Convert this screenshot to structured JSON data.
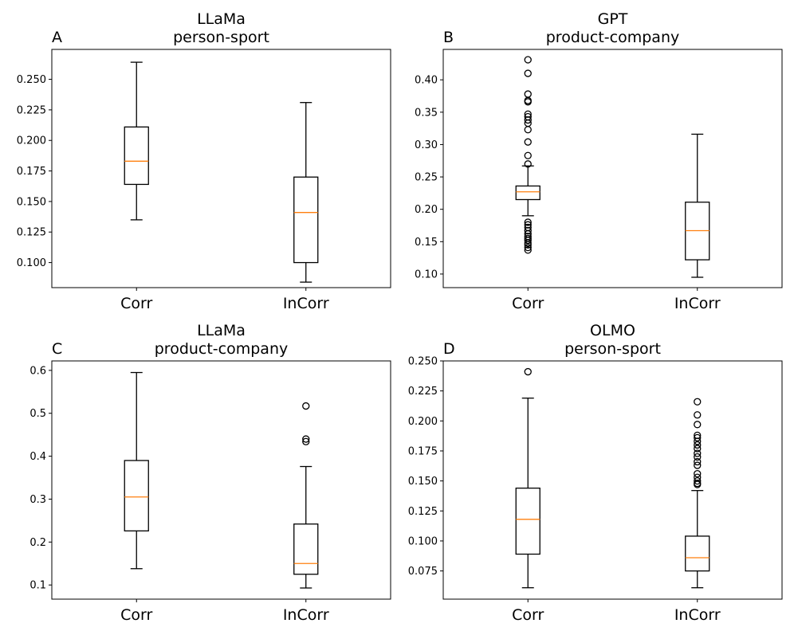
{
  "chart_data": [
    {
      "type": "box",
      "panel_label": "A",
      "title_line1": "LLaMa",
      "title_line2": "person-sport",
      "categories": [
        "Corr",
        "InCorr"
      ],
      "ylim": [
        0.0795,
        0.2745
      ],
      "yticks": [
        0.1,
        0.125,
        0.15,
        0.175,
        0.2,
        0.225,
        0.25
      ],
      "ytick_labels": [
        "0.100",
        "0.125",
        "0.150",
        "0.175",
        "0.200",
        "0.225",
        "0.250"
      ],
      "boxes": [
        {
          "whislo": 0.135,
          "q1": 0.164,
          "med": 0.183,
          "q3": 0.211,
          "whishi": 0.264,
          "fliers": []
        },
        {
          "whislo": 0.084,
          "q1": 0.1,
          "med": 0.141,
          "q3": 0.17,
          "whishi": 0.231,
          "fliers": []
        }
      ]
    },
    {
      "type": "box",
      "panel_label": "B",
      "title_line1": "GPT",
      "title_line2": "product-company",
      "categories": [
        "Corr",
        "InCorr"
      ],
      "ylim": [
        0.079,
        0.447
      ],
      "yticks": [
        0.1,
        0.15,
        0.2,
        0.25,
        0.3,
        0.35,
        0.4
      ],
      "ytick_labels": [
        "0.10",
        "0.15",
        "0.20",
        "0.25",
        "0.30",
        "0.35",
        "0.40"
      ],
      "boxes": [
        {
          "whislo": 0.19,
          "q1": 0.215,
          "med": 0.227,
          "q3": 0.236,
          "whishi": 0.267,
          "fliers": [
            0.431,
            0.41,
            0.378,
            0.368,
            0.366,
            0.347,
            0.343,
            0.338,
            0.333,
            0.323,
            0.304,
            0.283,
            0.27,
            0.18,
            0.176,
            0.172,
            0.167,
            0.162,
            0.158,
            0.155,
            0.152,
            0.148,
            0.145,
            0.141,
            0.137
          ]
        },
        {
          "whislo": 0.095,
          "q1": 0.122,
          "med": 0.167,
          "q3": 0.211,
          "whishi": 0.316,
          "fliers": []
        }
      ]
    },
    {
      "type": "box",
      "panel_label": "C",
      "title_line1": "LLaMa",
      "title_line2": "product-company",
      "categories": [
        "Corr",
        "InCorr"
      ],
      "ylim": [
        0.067,
        0.622
      ],
      "yticks": [
        0.1,
        0.2,
        0.3,
        0.4,
        0.5,
        0.6
      ],
      "ytick_labels": [
        "0.1",
        "0.2",
        "0.3",
        "0.4",
        "0.5",
        "0.6"
      ],
      "boxes": [
        {
          "whislo": 0.138,
          "q1": 0.226,
          "med": 0.305,
          "q3": 0.39,
          "whishi": 0.595,
          "fliers": []
        },
        {
          "whislo": 0.093,
          "q1": 0.125,
          "med": 0.15,
          "q3": 0.242,
          "whishi": 0.376,
          "fliers": [
            0.517,
            0.44,
            0.434
          ]
        }
      ]
    },
    {
      "type": "box",
      "panel_label": "D",
      "title_line1": "OLMO",
      "title_line2": "person-sport",
      "categories": [
        "Corr",
        "InCorr"
      ],
      "ylim": [
        0.0515,
        0.25
      ],
      "yticks": [
        0.075,
        0.1,
        0.125,
        0.15,
        0.175,
        0.2,
        0.225,
        0.25
      ],
      "ytick_labels": [
        "0.075",
        "0.100",
        "0.125",
        "0.150",
        "0.175",
        "0.200",
        "0.225",
        "0.250"
      ],
      "boxes": [
        {
          "whislo": 0.061,
          "q1": 0.089,
          "med": 0.118,
          "q3": 0.144,
          "whishi": 0.219,
          "fliers": [
            0.241
          ]
        },
        {
          "whislo": 0.061,
          "q1": 0.075,
          "med": 0.086,
          "q3": 0.104,
          "whishi": 0.142,
          "fliers": [
            0.216,
            0.205,
            0.197,
            0.188,
            0.186,
            0.183,
            0.18,
            0.177,
            0.173,
            0.17,
            0.166,
            0.163,
            0.156,
            0.153,
            0.15,
            0.148,
            0.147
          ]
        }
      ]
    }
  ]
}
